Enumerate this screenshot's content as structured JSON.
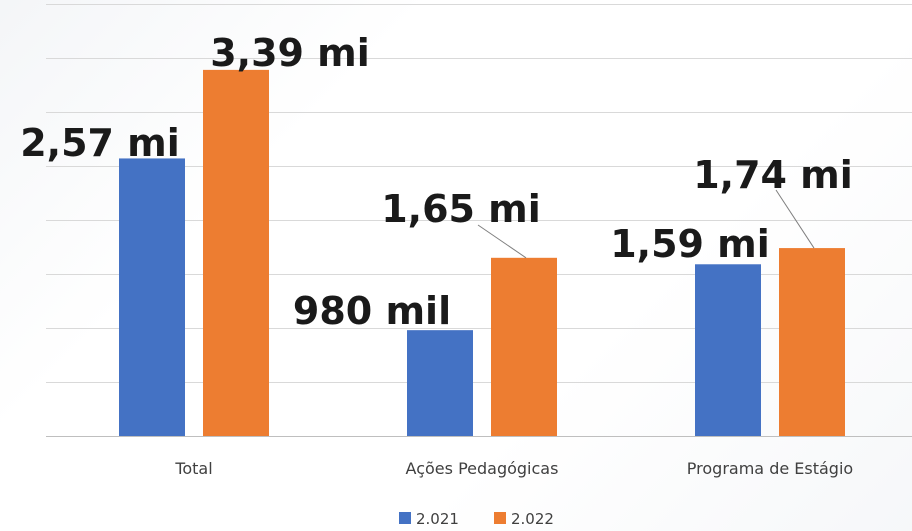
{
  "chart_data": {
    "type": "bar",
    "categories": [
      "Total",
      "Ações Pedagógicas",
      "Programa de Estágio"
    ],
    "series": [
      {
        "name": "2.021",
        "color": "#4472c4",
        "values": [
          2570000,
          980000,
          1590000
        ],
        "data_labels": [
          "2,57 mi",
          "980 mil",
          "1,59 mi"
        ]
      },
      {
        "name": "2.022",
        "color": "#ed7d31",
        "values": [
          3390000,
          1650000,
          1740000
        ],
        "data_labels": [
          "3,39 mi",
          "1,65 mi",
          "1,74 mi"
        ]
      }
    ],
    "ylim": [
      0,
      4000000
    ],
    "grid": true,
    "legend_position": "bottom",
    "title": "",
    "xlabel": "",
    "ylabel": ""
  }
}
